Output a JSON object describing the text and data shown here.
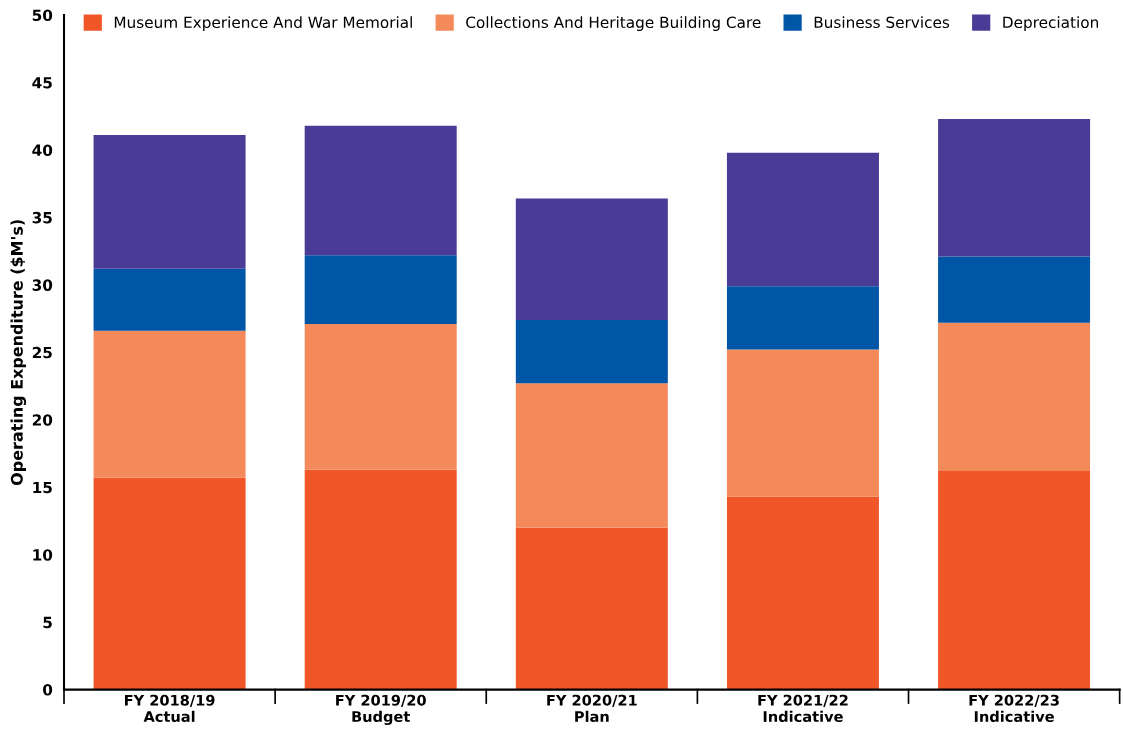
{
  "chart_data": {
    "type": "bar",
    "stacked": true,
    "ylabel": "Operating Expenditure ($M's)",
    "categories": [
      "FY 2018/19\nActual",
      "FY 2019/20\nBudget",
      "FY 2020/21\nPlan",
      "FY 2021/22\nIndicative",
      "FY 2022/23\nIndicative"
    ],
    "series": [
      {
        "name": "Museum Experience And War Memorial",
        "color": "#f05628",
        "values": [
          15.7,
          16.3,
          12.0,
          14.3,
          16.2
        ]
      },
      {
        "name": "Collections And Heritage Building Care",
        "color": "#f48a5a",
        "values": [
          10.9,
          10.8,
          10.7,
          10.9,
          11.0
        ]
      },
      {
        "name": "Business Services",
        "color": "#0056a6",
        "values": [
          4.6,
          5.1,
          4.7,
          4.7,
          4.9
        ]
      },
      {
        "name": "Depreciation",
        "color": "#4a3c96",
        "values": [
          9.9,
          9.6,
          9.0,
          9.9,
          10.2
        ]
      }
    ],
    "ylim": [
      0,
      50
    ],
    "yticks": [
      0,
      5,
      10,
      15,
      20,
      25,
      30,
      35,
      40,
      45,
      50
    ],
    "grid": false,
    "legend": "top"
  }
}
